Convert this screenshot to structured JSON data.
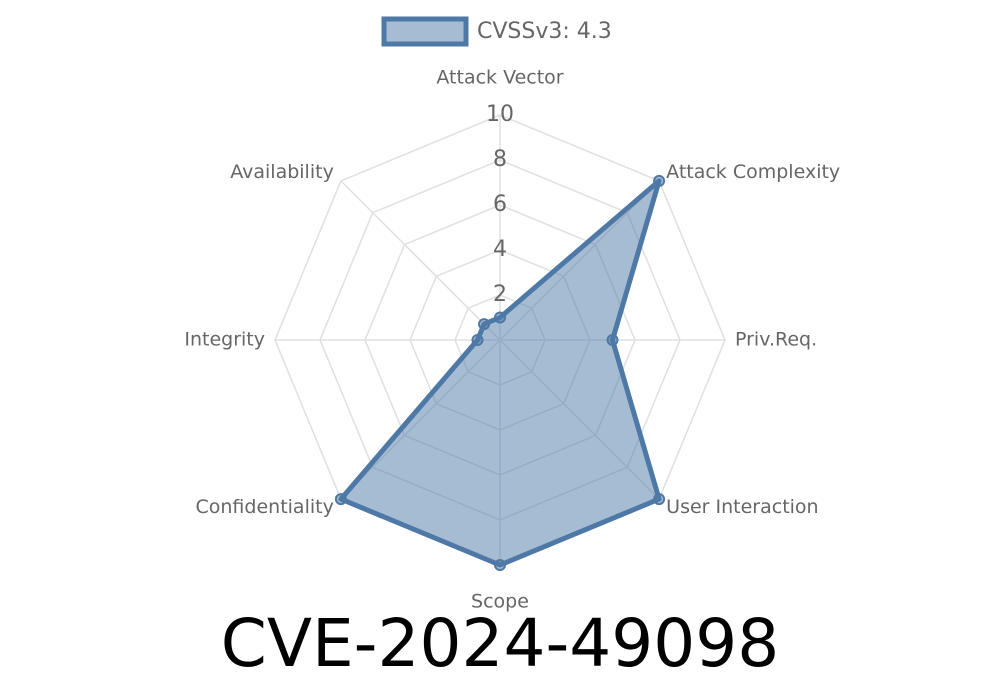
{
  "chart_data": {
    "type": "radar",
    "title": "CVE-2024-49098",
    "categories": [
      "Attack Vector",
      "Attack Complexity",
      "Priv.Req.",
      "User Interaction",
      "Scope",
      "Confidentiality",
      "Integrity",
      "Availability"
    ],
    "series": [
      {
        "name": "CVSSv3: 4.3",
        "color": "#4e79a7",
        "values": [
          1,
          10,
          5,
          10,
          10,
          10,
          1,
          1
        ]
      }
    ],
    "ylim": [
      0,
      10
    ],
    "yticks": [
      2,
      4,
      6,
      8,
      10
    ],
    "grid": true,
    "legend": "top"
  }
}
